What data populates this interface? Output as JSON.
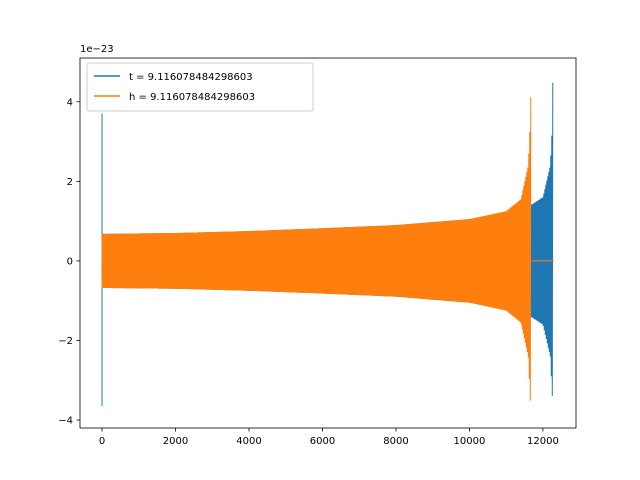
{
  "chart_data": {
    "type": "line",
    "title": "",
    "xlabel": "",
    "ylabel": "",
    "offset_text": "1e−23",
    "xlim": [
      -600,
      12900
    ],
    "ylim": [
      -4.2,
      5.1
    ],
    "xticks": [
      0,
      2000,
      4000,
      6000,
      8000,
      10000,
      12000
    ],
    "yticks": [
      -4,
      -2,
      0,
      2,
      4
    ],
    "ytick_labels": [
      "−4",
      "−2",
      "0",
      "2",
      "4"
    ],
    "grid": false,
    "legend_position": "top-left",
    "series": [
      {
        "name": "t = 9.116078484298603",
        "color": "#1f77b4",
        "spike_start": {
          "x": 0,
          "min": -3.65,
          "max": 3.7
        },
        "envelope": {
          "x": [
            20,
            2000,
            4000,
            6000,
            8000,
            10000,
            11000,
            11600,
            11700,
            12000,
            12200,
            12260,
            12270
          ],
          "upper": [
            0.68,
            0.7,
            0.75,
            0.82,
            0.9,
            1.05,
            1.2,
            1.4,
            1.42,
            1.6,
            2.4,
            3.5,
            4.72
          ],
          "lower": [
            -0.68,
            -0.7,
            -0.75,
            -0.82,
            -0.9,
            -1.05,
            -1.2,
            -1.4,
            -1.42,
            -1.6,
            -2.4,
            -3.5,
            -3.7
          ]
        },
        "tail": {
          "x": [
            12270,
            12300
          ],
          "y": 0
        }
      },
      {
        "name": "h = 9.116078484298603",
        "color": "#ff7f0e",
        "spike_start": {
          "x": 0,
          "min": -0.68,
          "max": 0.68
        },
        "envelope": {
          "x": [
            20,
            2000,
            4000,
            6000,
            8000,
            10000,
            11000,
            11400,
            11600,
            11660,
            11680
          ],
          "upper": [
            0.68,
            0.7,
            0.75,
            0.82,
            0.9,
            1.05,
            1.25,
            1.55,
            2.4,
            3.6,
            4.72
          ],
          "lower": [
            -0.68,
            -0.7,
            -0.75,
            -0.82,
            -0.9,
            -1.05,
            -1.25,
            -1.55,
            -2.4,
            -3.6,
            -3.7
          ]
        },
        "tail": {
          "x": [
            11690,
            12300
          ],
          "y": 0
        }
      }
    ]
  }
}
